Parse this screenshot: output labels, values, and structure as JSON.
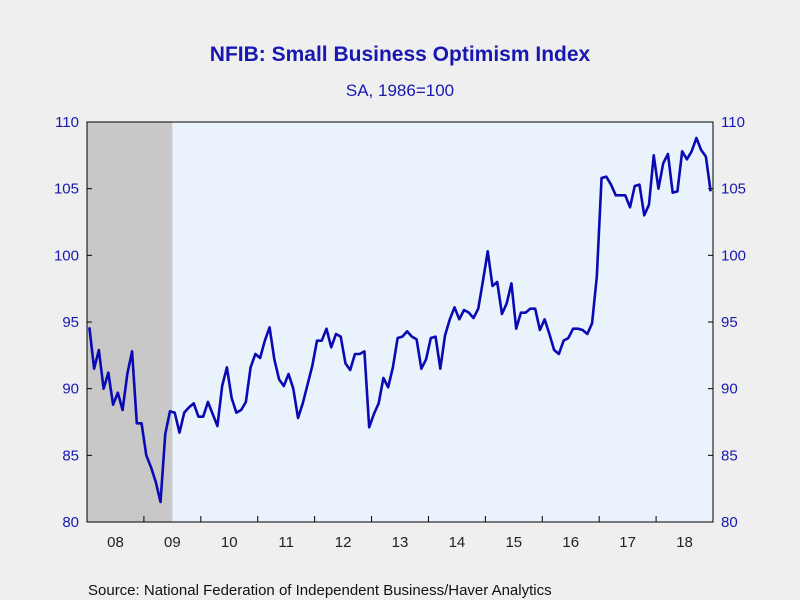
{
  "title": "NFIB: Small Business Optimism Index",
  "subtitle": "SA, 1986=100",
  "source": "Source:  National Federation of Independent Business/Haver Analytics",
  "colors": {
    "line": "#0a0ab4",
    "plot_background": "#eaf3fb",
    "recession_shade": "#c8c8c8",
    "axis_text": "#1818b0",
    "page_background": "#efefef"
  },
  "chart_data": {
    "type": "line",
    "x_start": "2008-01",
    "x_end": "2018-12",
    "frequency": "monthly",
    "ylim": [
      80,
      110
    ],
    "yticks": [
      80,
      85,
      90,
      95,
      100,
      105,
      110
    ],
    "ytick_labels": [
      "80",
      "85",
      "90",
      "95",
      "100",
      "105",
      "110"
    ],
    "xtick_labels": [
      "08",
      "09",
      "10",
      "11",
      "12",
      "13",
      "14",
      "15",
      "16",
      "17",
      "18"
    ],
    "recession_shade": {
      "start": "2008-01",
      "end": "2009-06"
    },
    "grid": false,
    "axes_right_labels": true,
    "series": [
      {
        "values": [
          94.6,
          91.5,
          92.9,
          90.0,
          91.2,
          88.8,
          89.7,
          88.4,
          91.1,
          92.8,
          87.4,
          87.4,
          85.0,
          84.1,
          83.0,
          81.5,
          86.6,
          88.3,
          88.2,
          86.7,
          88.2,
          88.6,
          88.9,
          87.9,
          87.9,
          89.0,
          88.1,
          87.2,
          90.2,
          91.6,
          89.3,
          88.2,
          88.4,
          89.0,
          91.6,
          92.6,
          92.3,
          93.6,
          94.6,
          92.2,
          90.7,
          90.2,
          91.1,
          90.0,
          87.8,
          88.9,
          90.3,
          91.7,
          93.6,
          93.6,
          94.5,
          93.1,
          94.1,
          93.9,
          91.9,
          91.4,
          92.6,
          92.6,
          92.8,
          87.1,
          88.1,
          88.9,
          90.8,
          90.1,
          91.6,
          93.8,
          93.9,
          94.3,
          93.9,
          93.7,
          91.5,
          92.2,
          93.8,
          93.9,
          91.5,
          94.0,
          95.2,
          96.1,
          95.2,
          95.9,
          95.7,
          95.3,
          96.0,
          98.1,
          100.3,
          97.7,
          98.0,
          95.6,
          96.4,
          97.9,
          94.5,
          95.7,
          95.7,
          96.0,
          96.0,
          94.4,
          95.2,
          94.1,
          92.9,
          92.6,
          93.6,
          93.8,
          94.5,
          94.5,
          94.4,
          94.1,
          94.9,
          98.4,
          105.8,
          105.9,
          105.3,
          104.5,
          104.5,
          104.5,
          103.6,
          105.2,
          105.3,
          103.0,
          103.8,
          107.5,
          105.0,
          106.9,
          107.6,
          104.7,
          104.8,
          107.8,
          107.2,
          107.8,
          108.8,
          107.9,
          107.4,
          104.8
        ]
      }
    ]
  }
}
